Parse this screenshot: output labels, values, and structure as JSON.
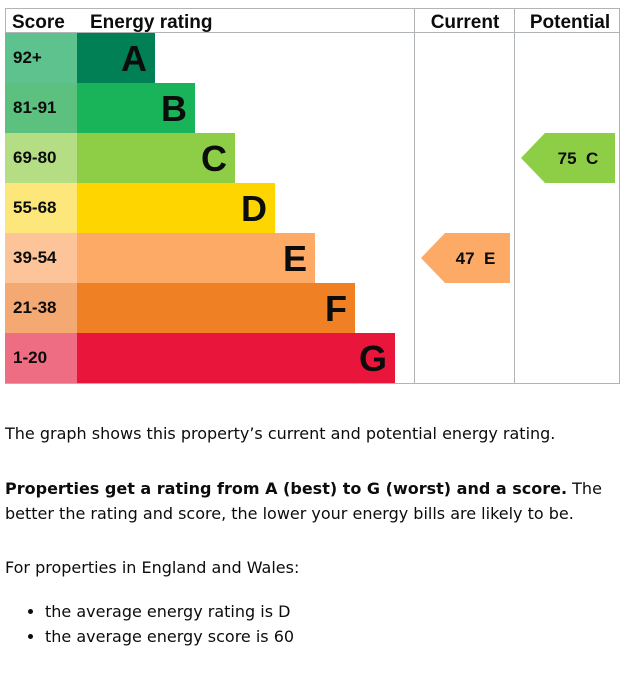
{
  "chart_data": {
    "type": "bar",
    "headers": {
      "score": "Score",
      "rating": "Energy rating",
      "current": "Current",
      "potential": "Potential"
    },
    "bands": [
      {
        "letter": "A",
        "range": "92+",
        "color": "#008054",
        "score_color": "#5ec28f"
      },
      {
        "letter": "B",
        "range": "81-91",
        "color": "#19b459",
        "score_color": "#5cc07f"
      },
      {
        "letter": "C",
        "range": "69-80",
        "color": "#8dce46",
        "score_color": "#b4dd84"
      },
      {
        "letter": "D",
        "range": "55-68",
        "color": "#ffd500",
        "score_color": "#fde67a"
      },
      {
        "letter": "E",
        "range": "39-54",
        "color": "#fcaa65",
        "score_color": "#fdc49a"
      },
      {
        "letter": "F",
        "range": "21-38",
        "color": "#ef8023",
        "score_color": "#f4a972"
      },
      {
        "letter": "G",
        "range": "1-20",
        "color": "#e9153b",
        "score_color": "#ee6d82"
      }
    ],
    "current": {
      "score": 47,
      "letter": "E",
      "label": "47  E",
      "color": "#fcaa65"
    },
    "potential": {
      "score": 75,
      "letter": "C",
      "label": "75  C",
      "color": "#8dce46"
    }
  },
  "text": {
    "p1": "The graph shows this property’s current and potential energy rating.",
    "p2_bold": "Properties get a rating from A (best) to G (worst) and a score.",
    "p2_rest": " The better the rating and score, the lower your energy bills are likely to be.",
    "p3": "For properties in England and Wales:",
    "bullets": [
      "the average energy rating is D",
      "the average energy score is 60"
    ]
  }
}
